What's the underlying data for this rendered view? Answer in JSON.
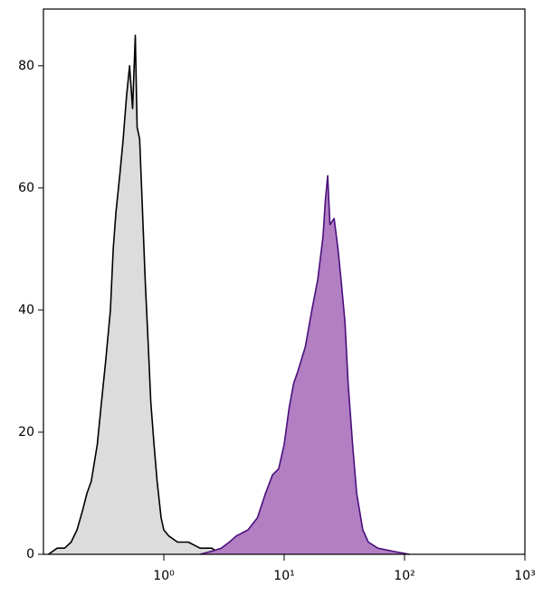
{
  "chart_data": {
    "type": "histogram-overlay",
    "log_x": true,
    "xlim": [
      0.1,
      1000
    ],
    "ylim": [
      0,
      89.3
    ],
    "xticks": [
      {
        "value": 1,
        "label": "10⁰"
      },
      {
        "value": 10,
        "label": "10¹"
      },
      {
        "value": 100,
        "label": "10²"
      },
      {
        "value": 1000,
        "label": "10³"
      }
    ],
    "yticks": [
      0,
      20,
      40,
      60,
      80
    ],
    "series": [
      {
        "color": "#dcdcdc",
        "line_color": "#000000",
        "x": [
          0.11,
          0.13,
          0.15,
          0.17,
          0.19,
          0.21,
          0.23,
          0.25,
          0.28,
          0.3,
          0.33,
          0.36,
          0.38,
          0.4,
          0.43,
          0.46,
          0.49,
          0.52,
          0.55,
          0.58,
          0.6,
          0.63,
          0.66,
          0.7,
          0.74,
          0.78,
          0.83,
          0.88,
          0.95,
          1.0,
          1.1,
          1.3,
          1.6,
          2.0,
          2.5,
          3.0
        ],
        "values": [
          0,
          1,
          1,
          2,
          4,
          7,
          10,
          12,
          18,
          24,
          32,
          40,
          50,
          56,
          62,
          68,
          75,
          80,
          73,
          85,
          70,
          68,
          58,
          45,
          35,
          25,
          18,
          12,
          6,
          4,
          3,
          2,
          2,
          1,
          1,
          0
        ]
      },
      {
        "color": "#b17fc2",
        "line_color": "#4b0f7d",
        "x": [
          2.0,
          2.5,
          3,
          3.5,
          4,
          5,
          6,
          7,
          8,
          9,
          10,
          11,
          12,
          13,
          15,
          17,
          19,
          21,
          22,
          23,
          24,
          26,
          28,
          30,
          32,
          34,
          37,
          40,
          45,
          50,
          60,
          80,
          110
        ],
        "values": [
          0,
          0.5,
          1,
          2,
          3,
          4,
          6,
          10,
          13,
          14,
          18,
          24,
          28,
          30,
          34,
          40,
          45,
          52,
          58,
          62,
          54,
          55,
          50,
          44,
          38,
          28,
          18,
          10,
          4,
          2,
          1,
          0.5,
          0
        ]
      }
    ]
  }
}
